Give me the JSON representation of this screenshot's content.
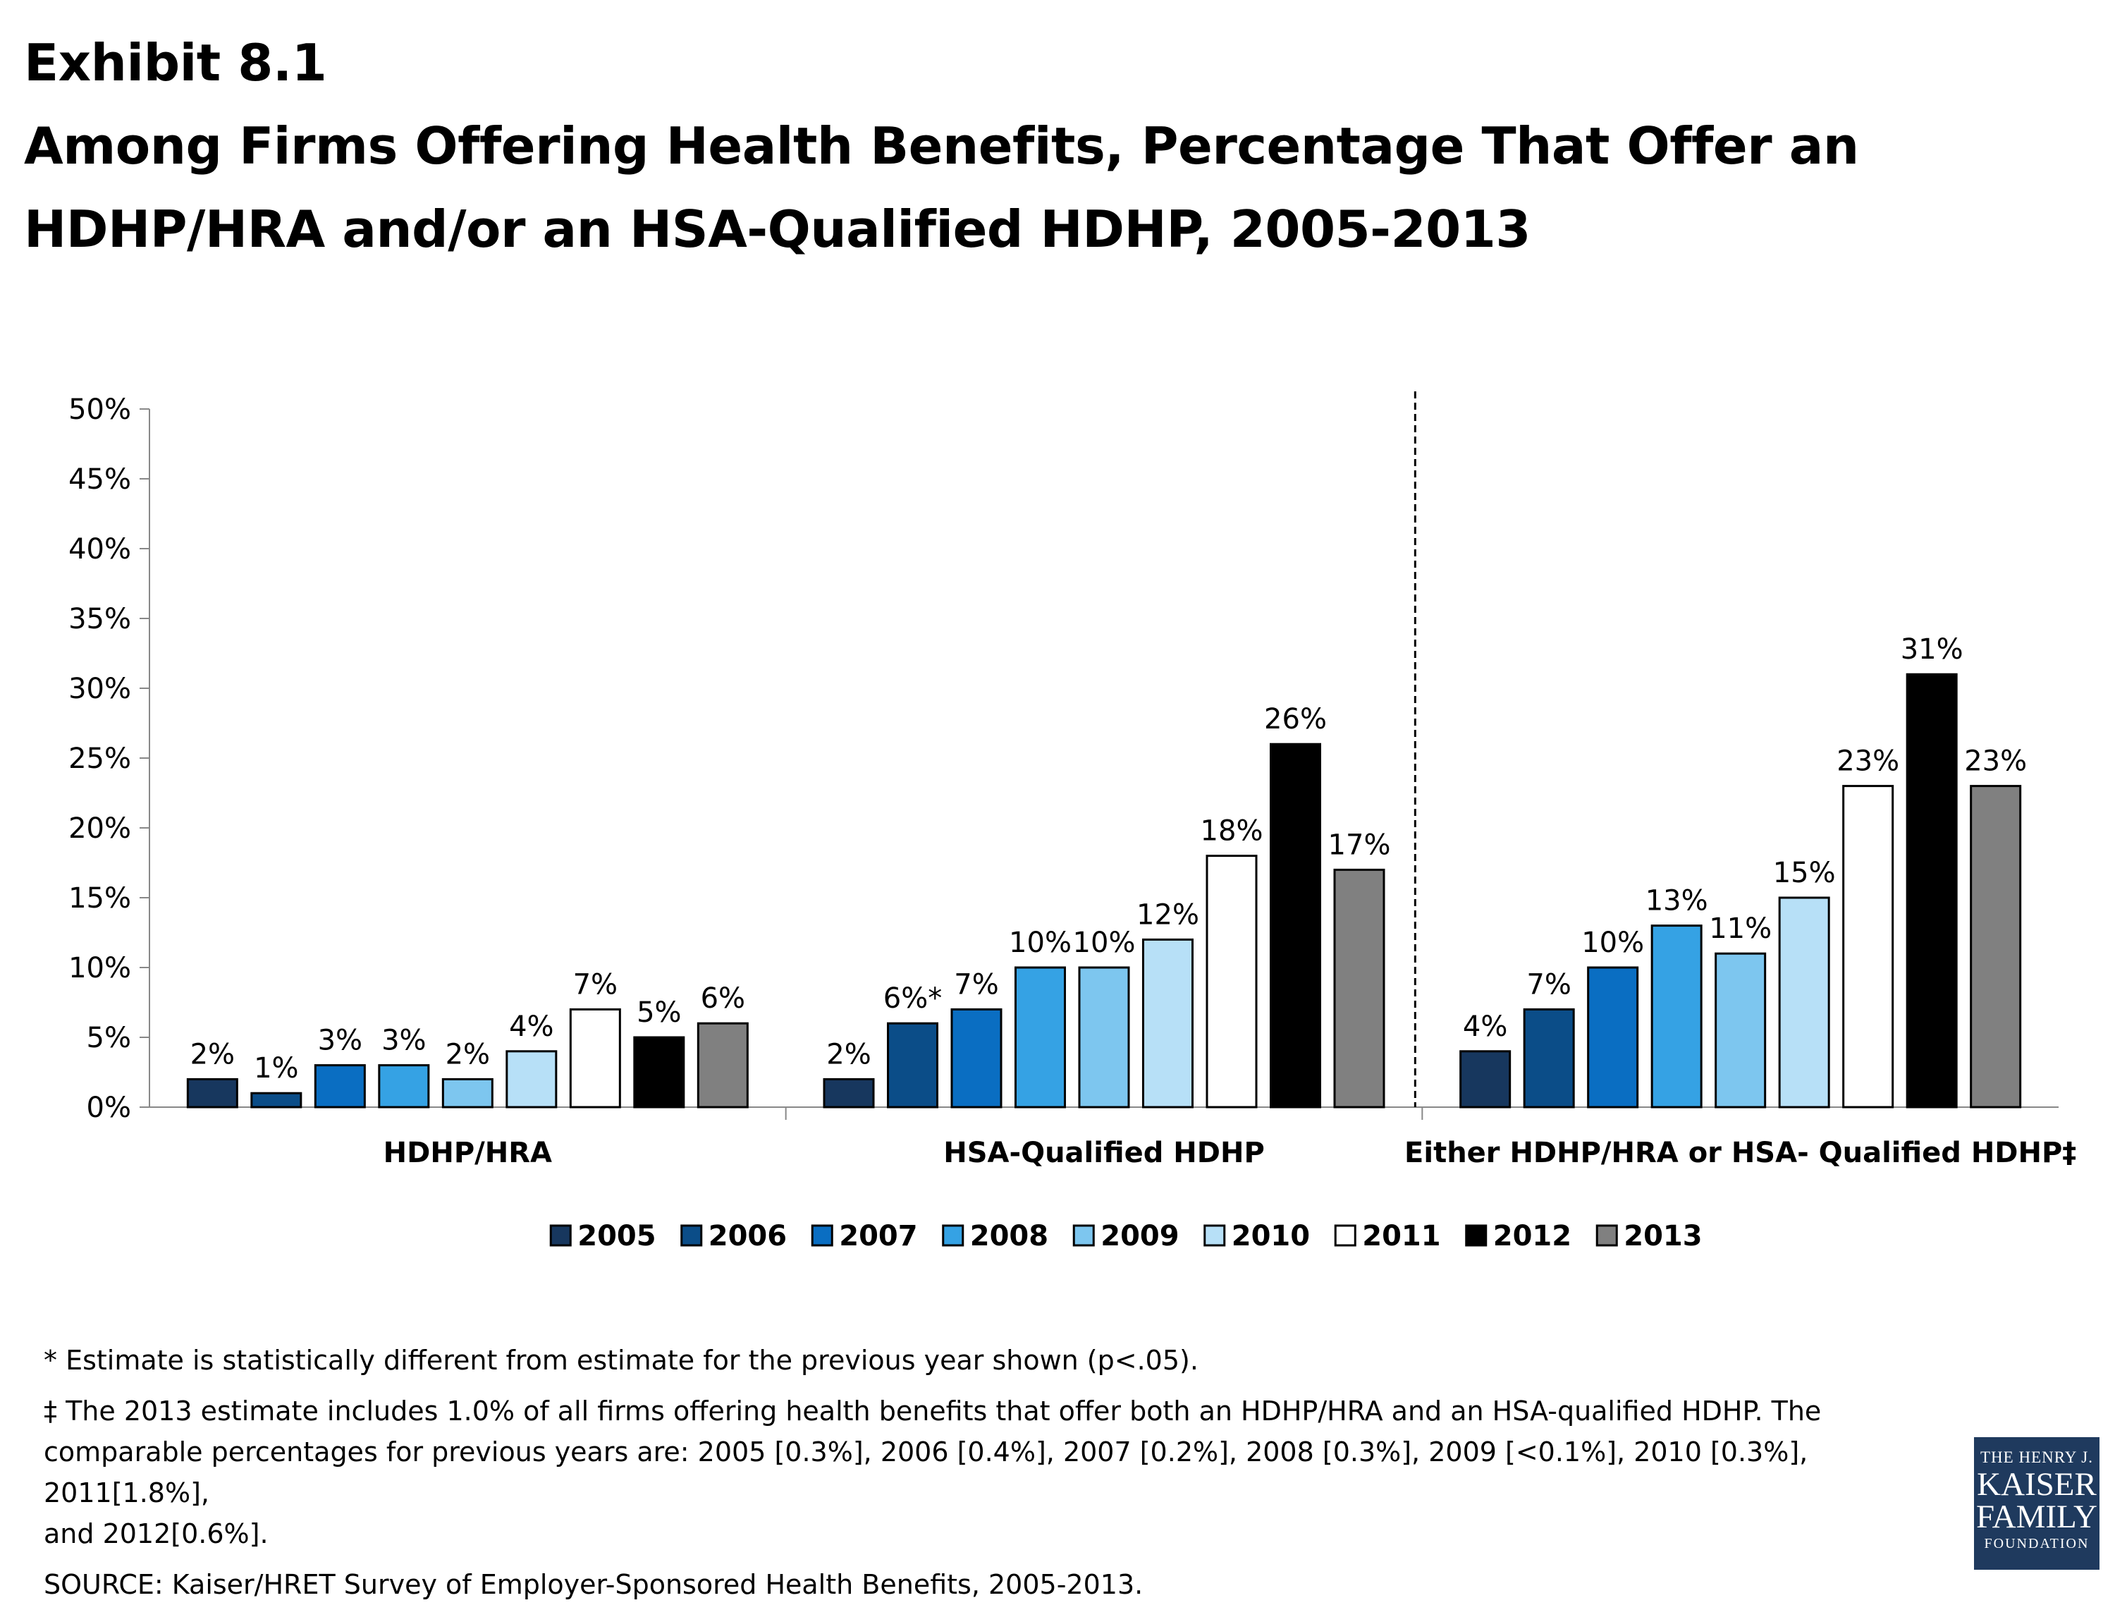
{
  "header": {
    "exhibit": "Exhibit 8.1",
    "title_line1": "Among Firms Offering Health Benefits, Percentage That Offer an",
    "title_line2": "HDHP/HRA and/or an HSA-Qualified HDHP, 2005-2013"
  },
  "chart_data": {
    "type": "bar",
    "categories": [
      "HDHP/HRA",
      "HSA-Qualified HDHP",
      "Either HDHP/HRA or HSA- Qualified HDHP‡"
    ],
    "series": [
      {
        "name": "2005",
        "values": [
          2,
          2,
          4
        ],
        "labels": [
          "2%",
          "2%",
          "4%"
        ],
        "color": "#17375e"
      },
      {
        "name": "2006",
        "values": [
          1,
          6,
          7
        ],
        "labels": [
          "1%",
          "6%*",
          "7%"
        ],
        "color": "#0b4d88"
      },
      {
        "name": "2007",
        "values": [
          3,
          7,
          10
        ],
        "labels": [
          "3%",
          "7%",
          "10%"
        ],
        "color": "#0a6ec2"
      },
      {
        "name": "2008",
        "values": [
          3,
          10,
          13
        ],
        "labels": [
          "3%",
          "10%",
          "13%"
        ],
        "color": "#35a2e4"
      },
      {
        "name": "2009",
        "values": [
          2,
          10,
          11
        ],
        "labels": [
          "2%",
          "10%",
          "11%"
        ],
        "color": "#7dc6ef"
      },
      {
        "name": "2010",
        "values": [
          4,
          12,
          15
        ],
        "labels": [
          "4%",
          "12%",
          "15%"
        ],
        "color": "#b7e0f7"
      },
      {
        "name": "2011",
        "values": [
          7,
          18,
          23
        ],
        "labels": [
          "7%",
          "18%",
          "23%"
        ],
        "color": "#ffffff"
      },
      {
        "name": "2012",
        "values": [
          5,
          26,
          31
        ],
        "labels": [
          "5%",
          "26%",
          "31%"
        ],
        "color": "#000000"
      },
      {
        "name": "2013",
        "values": [
          6,
          17,
          23
        ],
        "labels": [
          "6%",
          "17%",
          "23%"
        ],
        "color": "#808080"
      }
    ],
    "yticks": [
      "0%",
      "5%",
      "10%",
      "15%",
      "20%",
      "25%",
      "30%",
      "35%",
      "40%",
      "45%",
      "50%"
    ],
    "ylim": [
      0,
      50
    ],
    "ystep": 5,
    "legend_position": "bottom",
    "divider_between": [
      1,
      2
    ]
  },
  "footnotes": {
    "note1": "* Estimate is statistically different from estimate for the previous year shown (p<.05).",
    "note2_line1": "‡ The 2013 estimate includes 1.0% of all firms offering health benefits that offer both an HDHP/HRA and an HSA-qualified HDHP.  The",
    "note2_line2": "comparable percentages for previous years are: 2005 [0.3%], 2006 [0.4%], 2007 [0.2%], 2008 [0.3%], 2009 [<0.1%], 2010 [0.3%], 2011[1.8%],",
    "note2_line3": "and 2012[0.6%].",
    "source": "SOURCE:  Kaiser/HRET Survey of Employer-Sponsored Health Benefits, 2005-2013."
  },
  "logo": {
    "line1": "THE HENRY J.",
    "line2": "KAISER",
    "line3": "FAMILY",
    "line4": "FOUNDATION"
  }
}
